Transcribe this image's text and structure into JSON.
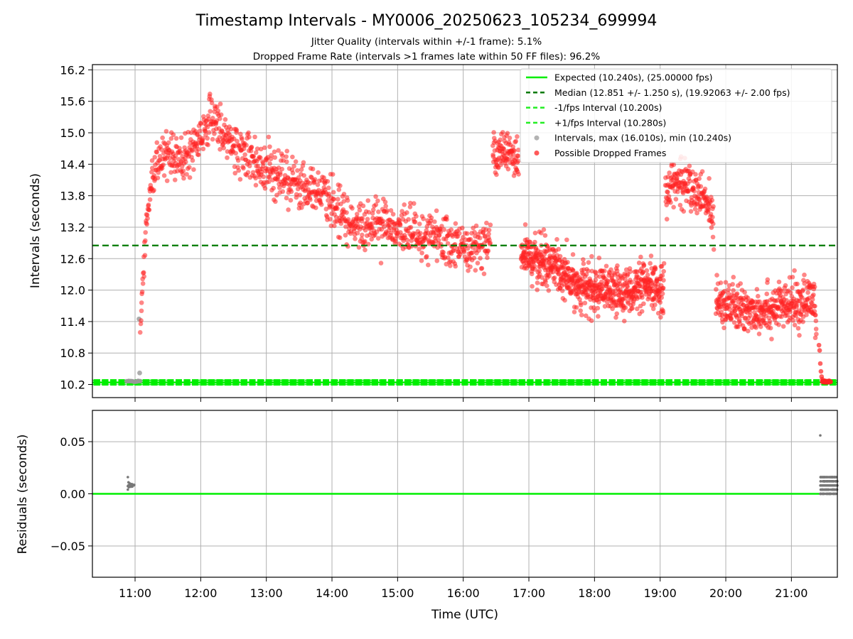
{
  "title": "Timestamp Intervals - MY0006_20250623_105234_699994",
  "subtitle_1": "Jitter Quality (intervals within +/-1 frame): 5.1%",
  "subtitle_2": "Dropped Frame Rate (intervals >1 frames late within 50 FF files): 96.2%",
  "colors": {
    "expected": "#00ee00",
    "median": "#007a00",
    "fps_interval": "#22ee22",
    "intervals": "#999999",
    "dropped": "#ff2222",
    "residual_points": "#777777",
    "grid": "#b0b0b0"
  },
  "chart_data": [
    {
      "type": "scatter",
      "name": "intervals",
      "xlabel": "",
      "ylabel": "Intervals (seconds)",
      "x_unit": "hours UTC",
      "xlim": [
        10.35,
        21.7
      ],
      "ylim": [
        9.95,
        16.3
      ],
      "y_ticks": [
        "10.2",
        "10.8",
        "11.4",
        "12.0",
        "12.6",
        "13.2",
        "13.8",
        "14.4",
        "15.0",
        "15.6",
        "16.2"
      ],
      "grid": true,
      "legend_position": "top-right",
      "legend": [
        "Expected (10.240s), (25.00000 fps)",
        "Median (12.851 +/- 1.250 s), (19.92063 +/- 2.00 fps)",
        "-1/fps Interval (10.200s)",
        "+1/fps Interval (10.280s)",
        "Intervals, max (16.010s), min (10.240s)",
        "Possible Dropped Frames"
      ],
      "expected_interval": 10.24,
      "median_interval": 12.851,
      "minus_fps_interval": 10.2,
      "plus_fps_interval": 10.28,
      "interval_max": 16.01,
      "interval_min": 10.24,
      "trend": [
        {
          "x": 10.9,
          "y": 10.26
        },
        {
          "x": 11.0,
          "y": 10.26
        },
        {
          "x": 11.06,
          "y": 10.27
        },
        {
          "x": 11.08,
          "y": 11.2
        },
        {
          "x": 11.12,
          "y": 12.2
        },
        {
          "x": 11.18,
          "y": 13.4
        },
        {
          "x": 11.25,
          "y": 14.0
        },
        {
          "x": 11.35,
          "y": 14.4
        },
        {
          "x": 11.5,
          "y": 14.6
        },
        {
          "x": 11.7,
          "y": 14.5
        },
        {
          "x": 11.9,
          "y": 14.7
        },
        {
          "x": 12.05,
          "y": 15.1
        },
        {
          "x": 12.2,
          "y": 15.2
        },
        {
          "x": 12.4,
          "y": 14.8
        },
        {
          "x": 12.7,
          "y": 14.5
        },
        {
          "x": 13.0,
          "y": 14.35
        },
        {
          "x": 13.3,
          "y": 14.15
        },
        {
          "x": 13.6,
          "y": 13.95
        },
        {
          "x": 13.9,
          "y": 13.85
        },
        {
          "x": 14.1,
          "y": 13.5
        },
        {
          "x": 14.4,
          "y": 13.2
        },
        {
          "x": 14.8,
          "y": 13.3
        },
        {
          "x": 15.2,
          "y": 13.1
        },
        {
          "x": 15.6,
          "y": 13.0
        },
        {
          "x": 16.0,
          "y": 12.8
        },
        {
          "x": 16.35,
          "y": 12.9
        },
        {
          "x": 16.42,
          "y": 13.0
        },
        {
          "x": 16.45,
          "y": 14.5
        },
        {
          "x": 16.65,
          "y": 14.7
        },
        {
          "x": 16.85,
          "y": 14.5
        },
        {
          "x": 16.88,
          "y": 12.7
        },
        {
          "x": 17.3,
          "y": 12.5
        },
        {
          "x": 17.7,
          "y": 12.1
        },
        {
          "x": 18.1,
          "y": 11.95
        },
        {
          "x": 18.5,
          "y": 12.0
        },
        {
          "x": 18.8,
          "y": 12.05
        },
        {
          "x": 19.05,
          "y": 12.0
        },
        {
          "x": 19.08,
          "y": 13.9
        },
        {
          "x": 19.3,
          "y": 14.1
        },
        {
          "x": 19.6,
          "y": 13.8
        },
        {
          "x": 19.8,
          "y": 13.5
        },
        {
          "x": 19.85,
          "y": 11.9
        },
        {
          "x": 20.2,
          "y": 11.6
        },
        {
          "x": 20.6,
          "y": 11.65
        },
        {
          "x": 21.0,
          "y": 11.7
        },
        {
          "x": 21.35,
          "y": 11.85
        },
        {
          "x": 21.42,
          "y": 10.3
        },
        {
          "x": 21.6,
          "y": 10.26
        }
      ]
    },
    {
      "type": "scatter",
      "name": "residuals",
      "xlabel": "Time (UTC)",
      "ylabel": "Residuals (seconds)",
      "xlim": [
        10.35,
        21.7
      ],
      "ylim": [
        -0.08,
        0.08
      ],
      "x_ticks": [
        "11:00",
        "12:00",
        "13:00",
        "14:00",
        "15:00",
        "16:00",
        "17:00",
        "18:00",
        "19:00",
        "20:00",
        "21:00"
      ],
      "y_ticks": [
        "0.05",
        "0.00",
        "−0.05"
      ],
      "grid": true,
      "zero_line": 0.0,
      "residual_max": 0.056
    }
  ]
}
